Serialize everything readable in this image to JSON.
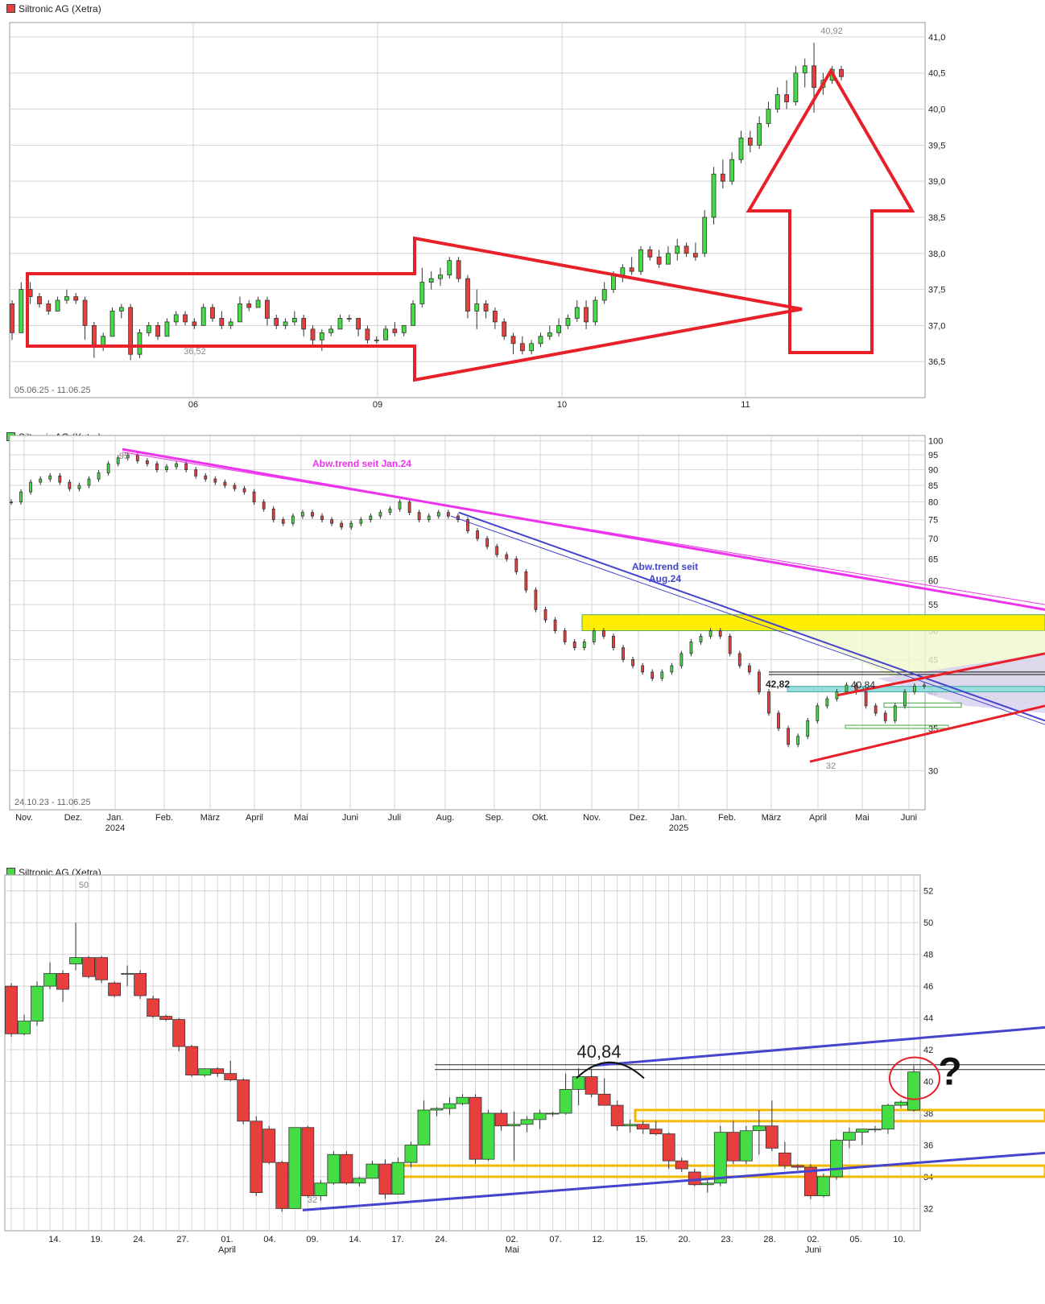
{
  "colors": {
    "up": "#44dd44",
    "down": "#e83e3e",
    "grid": "#d4d4d4",
    "frame": "#9a9a9a",
    "annotation_red": "#e8202a",
    "trend_magenta": "#ee33ee",
    "trend_blue": "#4444cc",
    "zone_yellow": "#ffee00",
    "zone_orange": "#f5b800"
  },
  "chart_data": [
    {
      "type": "candlestick",
      "title": "Siltronic AG (Xetra)",
      "legend_color": "#e83e3e",
      "period": "05.06.25 - 11.06.25",
      "x_ticks": [
        "06",
        "09",
        "10",
        "11"
      ],
      "y_ticks": [
        "41,0",
        "40,5",
        "40,0",
        "39,5",
        "39,0",
        "38,5",
        "38,0",
        "37,5",
        "37,0",
        "36,5"
      ],
      "ylim": [
        36.0,
        41.2
      ],
      "series_ohlc": [
        [
          37.3,
          37.35,
          36.8,
          36.9
        ],
        [
          36.9,
          37.6,
          36.9,
          37.5
        ],
        [
          37.5,
          37.6,
          37.3,
          37.4
        ],
        [
          37.4,
          37.45,
          37.25,
          37.3
        ],
        [
          37.3,
          37.35,
          37.15,
          37.2
        ],
        [
          37.2,
          37.4,
          37.2,
          37.35
        ],
        [
          37.35,
          37.5,
          37.3,
          37.4
        ],
        [
          37.4,
          37.45,
          37.3,
          37.35
        ],
        [
          37.35,
          37.4,
          36.8,
          37.0
        ],
        [
          37.0,
          37.05,
          36.55,
          36.7
        ],
        [
          36.7,
          36.9,
          36.65,
          36.85
        ],
        [
          36.85,
          37.25,
          36.85,
          37.2
        ],
        [
          37.2,
          37.3,
          37.1,
          37.25
        ],
        [
          37.25,
          37.3,
          36.52,
          36.6
        ],
        [
          36.6,
          36.95,
          36.55,
          36.9
        ],
        [
          36.9,
          37.05,
          36.85,
          37.0
        ],
        [
          37.0,
          37.05,
          36.8,
          36.85
        ],
        [
          36.85,
          37.1,
          36.85,
          37.05
        ],
        [
          37.05,
          37.2,
          37.0,
          37.15
        ],
        [
          37.15,
          37.2,
          37.0,
          37.05
        ],
        [
          37.05,
          37.1,
          36.95,
          37.0
        ],
        [
          37.0,
          37.3,
          37.0,
          37.25
        ],
        [
          37.25,
          37.3,
          37.05,
          37.1
        ],
        [
          37.1,
          37.2,
          36.95,
          37.0
        ],
        [
          37.0,
          37.1,
          36.95,
          37.05
        ],
        [
          37.05,
          37.4,
          37.05,
          37.3
        ],
        [
          37.3,
          37.35,
          37.2,
          37.25
        ],
        [
          37.25,
          37.4,
          37.25,
          37.35
        ],
        [
          37.35,
          37.4,
          37.0,
          37.1
        ],
        [
          37.1,
          37.15,
          36.95,
          37.0
        ],
        [
          37.0,
          37.1,
          36.95,
          37.05
        ],
        [
          37.05,
          37.2,
          37.0,
          37.1
        ],
        [
          37.1,
          37.15,
          36.85,
          36.95
        ],
        [
          36.95,
          37.0,
          36.7,
          36.8
        ],
        [
          36.8,
          36.95,
          36.65,
          36.9
        ],
        [
          36.9,
          37.0,
          36.85,
          36.95
        ],
        [
          36.95,
          37.15,
          36.95,
          37.1
        ],
        [
          37.1,
          37.15,
          37.05,
          37.1
        ],
        [
          37.1,
          37.1,
          36.85,
          36.95
        ],
        [
          36.95,
          37.0,
          36.75,
          36.8
        ],
        [
          36.8,
          36.85,
          36.75,
          36.8
        ],
        [
          36.8,
          37.0,
          36.8,
          36.95
        ],
        [
          36.95,
          37.05,
          36.85,
          36.9
        ],
        [
          36.9,
          37.0,
          36.85,
          37.0
        ],
        [
          37.0,
          37.35,
          37.0,
          37.3
        ],
        [
          37.3,
          37.8,
          37.25,
          37.6
        ],
        [
          37.6,
          37.75,
          37.5,
          37.65
        ],
        [
          37.65,
          37.8,
          37.55,
          37.7
        ],
        [
          37.7,
          37.95,
          37.65,
          37.9
        ],
        [
          37.9,
          37.95,
          37.6,
          37.65
        ],
        [
          37.65,
          37.7,
          37.1,
          37.2
        ],
        [
          37.2,
          37.5,
          36.95,
          37.3
        ],
        [
          37.3,
          37.35,
          37.1,
          37.2
        ],
        [
          37.2,
          37.25,
          36.95,
          37.05
        ],
        [
          37.05,
          37.1,
          36.8,
          36.85
        ],
        [
          36.85,
          36.9,
          36.6,
          36.75
        ],
        [
          36.75,
          36.85,
          36.6,
          36.65
        ],
        [
          36.65,
          36.8,
          36.6,
          36.75
        ],
        [
          36.75,
          36.9,
          36.7,
          36.85
        ],
        [
          36.85,
          37.0,
          36.8,
          36.9
        ],
        [
          36.9,
          37.1,
          36.85,
          37.0
        ],
        [
          37.0,
          37.15,
          36.95,
          37.1
        ],
        [
          37.1,
          37.35,
          37.05,
          37.25
        ],
        [
          37.25,
          37.35,
          36.95,
          37.05
        ],
        [
          37.05,
          37.4,
          37.0,
          37.35
        ],
        [
          37.35,
          37.6,
          37.3,
          37.5
        ],
        [
          37.5,
          37.75,
          37.45,
          37.7
        ],
        [
          37.7,
          37.85,
          37.6,
          37.8
        ],
        [
          37.8,
          37.95,
          37.7,
          37.75
        ],
        [
          37.75,
          38.1,
          37.7,
          38.05
        ],
        [
          38.05,
          38.1,
          37.9,
          37.95
        ],
        [
          37.95,
          38.05,
          37.8,
          37.85
        ],
        [
          37.85,
          38.1,
          37.85,
          38.0
        ],
        [
          38.0,
          38.2,
          37.9,
          38.1
        ],
        [
          38.1,
          38.15,
          37.95,
          38.0
        ],
        [
          38.0,
          38.15,
          37.9,
          37.95
        ],
        [
          38.0,
          38.6,
          37.95,
          38.5
        ],
        [
          38.5,
          39.2,
          38.4,
          39.1
        ],
        [
          39.1,
          39.3,
          38.9,
          39.0
        ],
        [
          39.0,
          39.4,
          38.95,
          39.3
        ],
        [
          39.3,
          39.7,
          39.25,
          39.6
        ],
        [
          39.6,
          39.7,
          39.4,
          39.5
        ],
        [
          39.5,
          39.9,
          39.45,
          39.8
        ],
        [
          39.8,
          40.1,
          39.75,
          40.0
        ],
        [
          40.0,
          40.3,
          39.95,
          40.2
        ],
        [
          40.2,
          40.4,
          40.0,
          40.1
        ],
        [
          40.1,
          40.6,
          40.05,
          40.5
        ],
        [
          40.5,
          40.7,
          40.3,
          40.6
        ],
        [
          40.6,
          40.92,
          39.95,
          40.3
        ],
        [
          40.3,
          40.5,
          40.2,
          40.4
        ],
        [
          40.4,
          40.6,
          40.35,
          40.55
        ],
        [
          40.55,
          40.6,
          40.4,
          40.45
        ]
      ],
      "annotations": {
        "high_label": "40,92",
        "low_label": "36,52"
      }
    },
    {
      "type": "candlestick",
      "title": "Siltronic AG (Xetra)",
      "legend_color": "#44dd44",
      "period": "24.10.23 - 11.06.25",
      "x_ticks": [
        "Nov.",
        "Dez.",
        "Jan.",
        "Feb.",
        "März",
        "April",
        "Mai",
        "Juni",
        "Juli",
        "Aug.",
        "Sep.",
        "Okt.",
        "Nov.",
        "Dez.",
        "Jan.",
        "Feb.",
        "März",
        "April",
        "Mai",
        "Juni"
      ],
      "x_year_labels": [
        "2024",
        "2025"
      ],
      "y_ticks": [
        "100",
        "95",
        "90",
        "85",
        "80",
        "75",
        "70",
        "65",
        "60",
        "55",
        "50",
        "45",
        "40",
        "35",
        "30"
      ],
      "ylim": [
        26,
        102
      ],
      "series_close": [
        80,
        83,
        86,
        87,
        88,
        86,
        84,
        85,
        87,
        89,
        92,
        94,
        95,
        93,
        92,
        90,
        91,
        92,
        90,
        88,
        87,
        86,
        85,
        84,
        83,
        80,
        78,
        75,
        74,
        76,
        77,
        76,
        75,
        74,
        73,
        74,
        75,
        76,
        77,
        78,
        80,
        77,
        75,
        76,
        77,
        76,
        75,
        72,
        70,
        68,
        66,
        65,
        62,
        58,
        54,
        52,
        50,
        48,
        47,
        48,
        50,
        49,
        47,
        45,
        44,
        43,
        42,
        43,
        44,
        46,
        48,
        49,
        50,
        49,
        46,
        44,
        43,
        40,
        37,
        35,
        33,
        34,
        36,
        38,
        39,
        40,
        41,
        40,
        38,
        37,
        36,
        38,
        40,
        40.84,
        41
      ],
      "annotations": {
        "label_trend_jan": "Abw.trend seit Jan.24",
        "label_trend_aug_1": "Abw.trend seit",
        "label_trend_aug_2": "Aug.24",
        "label_4282": "42,82",
        "label_4084": "40,84",
        "label_32": "32",
        "label_95": "95"
      }
    },
    {
      "type": "candlestick",
      "title": "Siltronic AG (Xetra)",
      "legend_color": "#44dd44",
      "x_ticks": [
        "14.",
        "19.",
        "24.",
        "27.",
        "01.",
        "04.",
        "09.",
        "14.",
        "17.",
        "24.",
        "02.",
        "07.",
        "12.",
        "15.",
        "20.",
        "23.",
        "28.",
        "02.",
        "05.",
        "10."
      ],
      "x_month_labels": [
        "April",
        "Mai",
        "Juni"
      ],
      "y_ticks": [
        "52",
        "50",
        "48",
        "46",
        "44",
        "42",
        "40",
        "38",
        "36",
        "34",
        "32"
      ],
      "ylim": [
        30.6,
        53.0
      ],
      "series_ohlc": [
        [
          46.0,
          46.2,
          42.8,
          43.0
        ],
        [
          43.0,
          44.2,
          42.9,
          43.8
        ],
        [
          43.8,
          46.3,
          43.5,
          46.0
        ],
        [
          46.0,
          47.5,
          45.8,
          46.8
        ],
        [
          46.8,
          47.0,
          45.0,
          45.8
        ],
        [
          47.4,
          50.0,
          47.0,
          47.8
        ],
        [
          47.8,
          47.9,
          46.5,
          46.6
        ],
        [
          47.8,
          47.9,
          46.2,
          46.4
        ],
        [
          46.2,
          46.3,
          45.3,
          45.4
        ],
        [
          46.8,
          47.3,
          46.0,
          46.8
        ],
        [
          46.8,
          47.0,
          45.2,
          45.4
        ],
        [
          45.2,
          45.4,
          44.0,
          44.1
        ],
        [
          44.1,
          44.2,
          43.8,
          43.9
        ],
        [
          43.9,
          44.0,
          41.9,
          42.2
        ],
        [
          42.2,
          42.3,
          40.3,
          40.4
        ],
        [
          40.4,
          40.8,
          40.3,
          40.8
        ],
        [
          40.8,
          40.9,
          40.3,
          40.5
        ],
        [
          40.5,
          41.3,
          40.0,
          40.1
        ],
        [
          40.1,
          40.2,
          37.3,
          37.5
        ],
        [
          37.5,
          37.8,
          32.8,
          33.0
        ],
        [
          37.0,
          37.2,
          34.8,
          34.9
        ],
        [
          34.9,
          35.0,
          31.8,
          32.0
        ],
        [
          32.0,
          37.1,
          32.0,
          37.1
        ],
        [
          37.1,
          37.2,
          32.7,
          32.8
        ],
        [
          32.8,
          33.8,
          32.5,
          33.6
        ],
        [
          33.6,
          35.6,
          33.5,
          35.4
        ],
        [
          35.4,
          35.6,
          33.5,
          33.6
        ],
        [
          33.6,
          34.0,
          33.4,
          33.9
        ],
        [
          33.9,
          35.0,
          33.9,
          34.8
        ],
        [
          34.8,
          35.1,
          32.6,
          32.9
        ],
        [
          32.9,
          35.2,
          32.9,
          34.9
        ],
        [
          34.9,
          36.2,
          34.6,
          36.0
        ],
        [
          36.0,
          38.8,
          36.0,
          38.2
        ],
        [
          38.2,
          38.4,
          37.8,
          38.3
        ],
        [
          38.3,
          39.0,
          37.9,
          38.6
        ],
        [
          38.6,
          39.2,
          38.5,
          39.0
        ],
        [
          39.0,
          39.2,
          34.8,
          35.1
        ],
        [
          35.1,
          38.2,
          35.0,
          38.0
        ],
        [
          38.0,
          38.2,
          36.9,
          37.2
        ],
        [
          37.2,
          38.1,
          35.0,
          37.3
        ],
        [
          37.3,
          37.8,
          36.8,
          37.6
        ],
        [
          37.6,
          38.2,
          37.0,
          38.0
        ],
        [
          38.0,
          38.1,
          37.8,
          38.0
        ],
        [
          38.0,
          40.5,
          37.9,
          39.5
        ],
        [
          39.5,
          40.84,
          38.5,
          40.3
        ],
        [
          40.3,
          40.8,
          39.0,
          39.2
        ],
        [
          39.2,
          40.2,
          38.7,
          38.5
        ],
        [
          38.5,
          38.8,
          36.9,
          37.2
        ],
        [
          37.2,
          37.6,
          36.8,
          37.3
        ],
        [
          37.3,
          37.5,
          36.7,
          37.0
        ],
        [
          37.0,
          37.5,
          36.6,
          36.7
        ],
        [
          36.7,
          36.8,
          34.5,
          35.0
        ],
        [
          35.0,
          35.2,
          34.3,
          34.5
        ],
        [
          34.3,
          34.5,
          33.4,
          33.5
        ],
        [
          33.5,
          33.8,
          33.0,
          33.6
        ],
        [
          33.6,
          37.2,
          33.4,
          36.8
        ],
        [
          36.8,
          37.5,
          34.8,
          35.0
        ],
        [
          35.0,
          37.2,
          34.8,
          36.9
        ],
        [
          36.9,
          38.2,
          35.4,
          37.2
        ],
        [
          37.2,
          38.8,
          35.6,
          35.8
        ],
        [
          35.5,
          36.2,
          34.5,
          34.7
        ],
        [
          34.7,
          34.8,
          34.4,
          34.6
        ],
        [
          34.6,
          34.8,
          32.6,
          32.8
        ],
        [
          32.8,
          34.2,
          32.7,
          34.0
        ],
        [
          34.0,
          36.4,
          33.8,
          36.3
        ],
        [
          36.3,
          37.1,
          35.8,
          36.8
        ],
        [
          36.8,
          37.0,
          36.0,
          37.0
        ],
        [
          37.0,
          37.2,
          36.8,
          37.0
        ],
        [
          37.0,
          38.6,
          36.7,
          38.5
        ],
        [
          38.5,
          38.8,
          38.3,
          38.7
        ],
        [
          38.2,
          41.0,
          38.1,
          40.6
        ]
      ],
      "annotations": {
        "label_50": "50",
        "label_4084": "40,84",
        "label_32": "32",
        "question": "?"
      }
    }
  ]
}
